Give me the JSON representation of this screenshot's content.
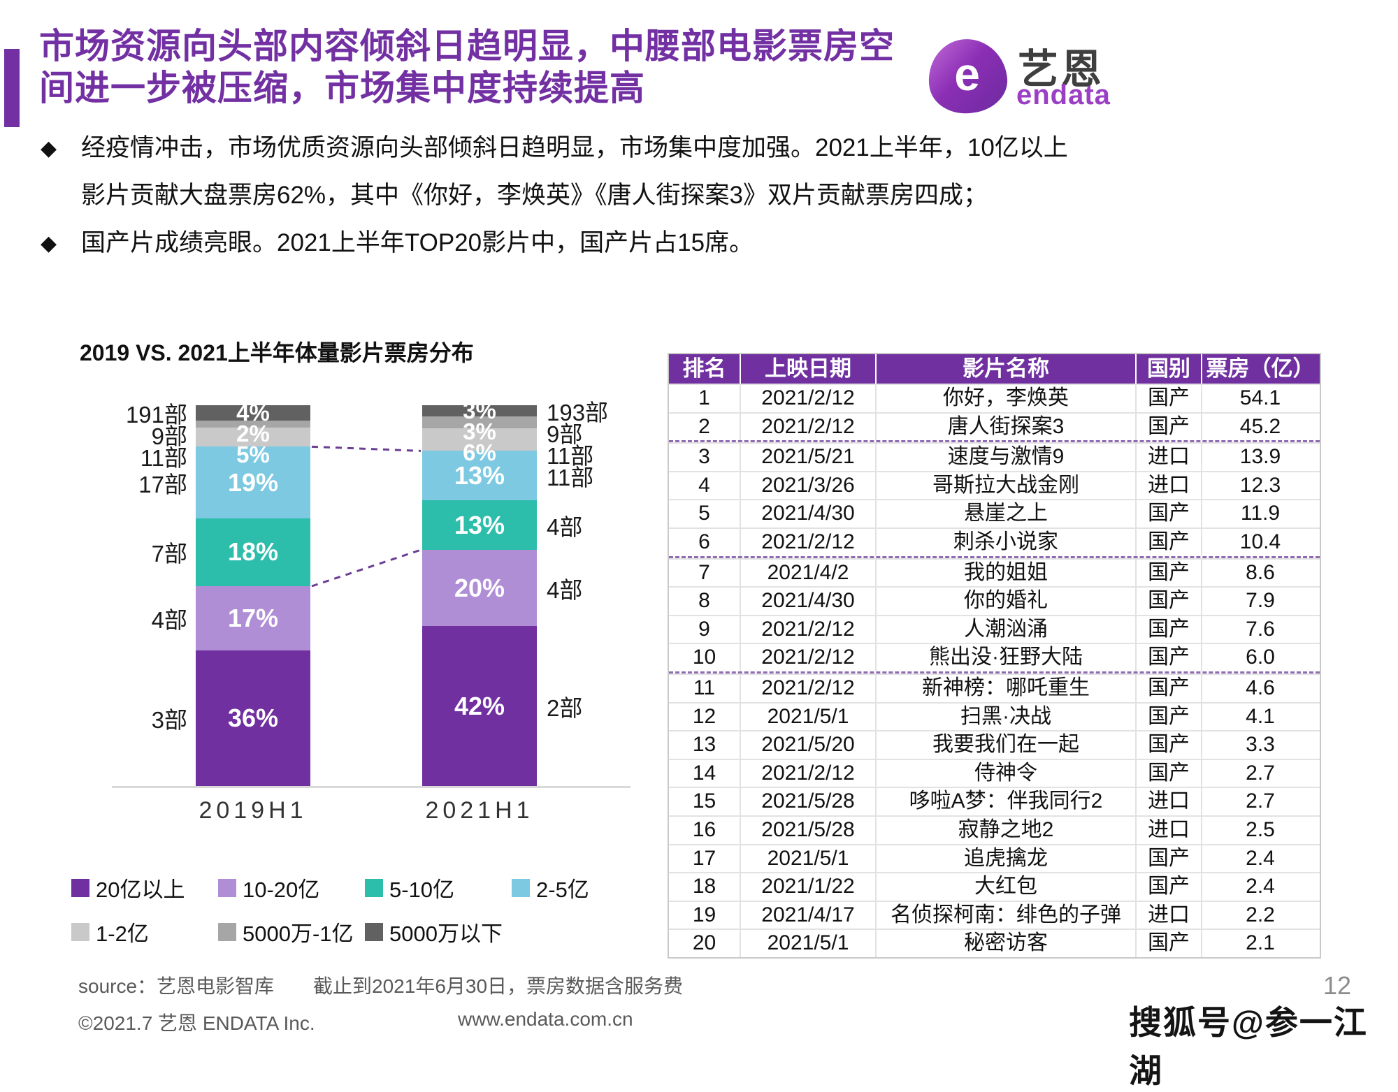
{
  "page": {
    "number": "12",
    "watermark": "搜狐号@参一江湖"
  },
  "header": {
    "title_line1": "市场资源向头部内容倾斜日趋明显，中腰部电影票房空",
    "title_line2": "间进一步被压缩，市场集中度持续提高",
    "logo": {
      "mark": "e",
      "name_cn": "艺恩",
      "name_en": "endata"
    }
  },
  "bullets": [
    {
      "marker": "◆",
      "line1": "经疫情冲击，市场优质资源向头部倾斜日趋明显，市场集中度加强。2021上半年，10亿以上",
      "line2": "影片贡献大盘票房62%，其中《你好，李焕英》《唐人街探案3》双片贡献票房四成；"
    },
    {
      "marker": "◆",
      "line1": "国产片成绩亮眼。2021上半年TOP20影片中，国产片占15席。"
    }
  ],
  "chart_data": {
    "type": "bar",
    "subtype": "stacked-percent-column",
    "title": "2019 VS. 2021上半年体量影片票房分布",
    "categories": [
      "2019H1",
      "2021H1"
    ],
    "value_label_format": "percent",
    "legend_position": "bottom",
    "legend": [
      {
        "label": "20亿以上",
        "color": "#7030a0"
      },
      {
        "label": "10-20亿",
        "color": "#b08ed6"
      },
      {
        "label": "5-10亿",
        "color": "#2dbdab"
      },
      {
        "label": "2-5亿",
        "color": "#7ec9e2"
      },
      {
        "label": "1-2亿",
        "color": "#c9c9c9"
      },
      {
        "label": "5000万-1亿",
        "color": "#a6a6a6"
      },
      {
        "label": "5000万以下",
        "color": "#616161"
      }
    ],
    "bars": [
      {
        "category": "2019H1",
        "segments_top_to_bottom": [
          {
            "band": "5000万以下",
            "pct": 4,
            "count": "191部",
            "color": "#616161"
          },
          {
            "band": "5000万-1亿",
            "pct": 2,
            "count": "9部",
            "color": "#a6a6a6"
          },
          {
            "band": "1-2亿",
            "pct": 5,
            "count": "11部",
            "color": "#c9c9c9"
          },
          {
            "band": "2-5亿",
            "pct": 19,
            "count": "17部",
            "color": "#7ec9e2"
          },
          {
            "band": "5-10亿",
            "pct": 18,
            "count": "7部",
            "color": "#2dbdab"
          },
          {
            "band": "10-20亿",
            "pct": 17,
            "count": "4部",
            "color": "#b08ed6"
          },
          {
            "band": "20亿以上",
            "pct": 36,
            "count": "3部",
            "color": "#7030a0"
          }
        ]
      },
      {
        "category": "2021H1",
        "segments_top_to_bottom": [
          {
            "band": "5000万以下",
            "pct": 3,
            "count": "193部",
            "color": "#616161"
          },
          {
            "band": "5000万-1亿",
            "pct": 3,
            "count": "9部",
            "color": "#a6a6a6"
          },
          {
            "band": "1-2亿",
            "pct": 6,
            "count": "11部",
            "color": "#c9c9c9"
          },
          {
            "band": "2-5亿",
            "pct": 13,
            "count": "11部",
            "color": "#7ec9e2"
          },
          {
            "band": "5-10亿",
            "pct": 13,
            "count": "4部",
            "color": "#2dbdab"
          },
          {
            "band": "10-20亿",
            "pct": 20,
            "count": "4部",
            "color": "#b08ed6"
          },
          {
            "band": "20亿以上",
            "pct": 42,
            "count": "2部",
            "color": "#7030a0"
          }
        ]
      }
    ],
    "connectors_after_top_segments": [
      3,
      5
    ]
  },
  "table": {
    "headers": [
      "排名",
      "上映日期",
      "影片名称",
      "国别",
      "票房（亿）"
    ],
    "group_breaks": [
      2,
      6,
      10
    ],
    "rows": [
      [
        "1",
        "2021/2/12",
        "你好，李焕英",
        "国产",
        "54.1"
      ],
      [
        "2",
        "2021/2/12",
        "唐人街探案3",
        "国产",
        "45.2"
      ],
      [
        "3",
        "2021/5/21",
        "速度与激情9",
        "进口",
        "13.9"
      ],
      [
        "4",
        "2021/3/26",
        "哥斯拉大战金刚",
        "进口",
        "12.3"
      ],
      [
        "5",
        "2021/4/30",
        "悬崖之上",
        "国产",
        "11.9"
      ],
      [
        "6",
        "2021/2/12",
        "刺杀小说家",
        "国产",
        "10.4"
      ],
      [
        "7",
        "2021/4/2",
        "我的姐姐",
        "国产",
        "8.6"
      ],
      [
        "8",
        "2021/4/30",
        "你的婚礼",
        "国产",
        "7.9"
      ],
      [
        "9",
        "2021/2/12",
        "人潮汹涌",
        "国产",
        "7.6"
      ],
      [
        "10",
        "2021/2/12",
        "熊出没·狂野大陆",
        "国产",
        "6.0"
      ],
      [
        "11",
        "2021/2/12",
        "新神榜：哪吒重生",
        "国产",
        "4.6"
      ],
      [
        "12",
        "2021/5/1",
        "扫黑·决战",
        "国产",
        "4.1"
      ],
      [
        "13",
        "2021/5/20",
        "我要我们在一起",
        "国产",
        "3.3"
      ],
      [
        "14",
        "2021/2/12",
        "侍神令",
        "国产",
        "2.7"
      ],
      [
        "15",
        "2021/5/28",
        "哆啦A梦：伴我同行2",
        "进口",
        "2.7"
      ],
      [
        "16",
        "2021/5/28",
        "寂静之地2",
        "进口",
        "2.5"
      ],
      [
        "17",
        "2021/5/1",
        "追虎擒龙",
        "国产",
        "2.4"
      ],
      [
        "18",
        "2021/1/22",
        "大红包",
        "国产",
        "2.4"
      ],
      [
        "19",
        "2021/4/17",
        "名侦探柯南：绯色的子弹",
        "进口",
        "2.2"
      ],
      [
        "20",
        "2021/5/1",
        "秘密访客",
        "国产",
        "2.1"
      ]
    ]
  },
  "footer": {
    "source": "source：艺恩电影智库　　截止到2021年6月30日，票房数据含服务费",
    "copyright": "©2021.7 艺恩 ENDATA Inc.",
    "website": "www.endata.com.cn"
  },
  "colors": {
    "accent": "#7230a3",
    "table_header": "#7030a0",
    "connector": "#6b3e94"
  }
}
